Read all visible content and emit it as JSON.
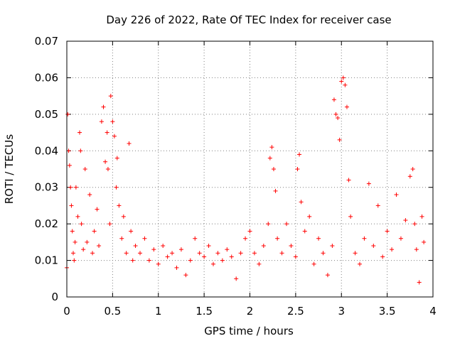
{
  "chart_data": {
    "type": "scatter",
    "title": "Day 226 of 2022, Rate Of TEC Index for receiver case",
    "xlabel": "GPS time / hours",
    "ylabel": "ROTI / TECUs",
    "xlim": [
      0,
      4
    ],
    "ylim": [
      0,
      0.07
    ],
    "x_ticks": [
      0,
      0.5,
      1,
      1.5,
      2,
      2.5,
      3,
      3.5,
      4
    ],
    "x_tick_labels": [
      "0",
      "0.5",
      "1",
      "1.5",
      "2",
      "2.5",
      "3",
      "3.5",
      "4"
    ],
    "y_ticks": [
      0,
      0.01,
      0.02,
      0.03,
      0.04,
      0.05,
      0.06,
      0.07
    ],
    "y_tick_labels": [
      "0",
      "0.01",
      "0.02",
      "0.03",
      "0.04",
      "0.05",
      "0.06",
      "0.07"
    ],
    "grid": true,
    "marker": "+",
    "series": [
      {
        "name": "ROTI",
        "color": "#ff0000",
        "description_points": "approximate digitized samples",
        "x": [
          0.0,
          0.01,
          0.02,
          0.03,
          0.04,
          0.05,
          0.06,
          0.07,
          0.08,
          0.09,
          0.1,
          0.12,
          0.14,
          0.15,
          0.16,
          0.18,
          0.2,
          0.22,
          0.25,
          0.28,
          0.3,
          0.33,
          0.35,
          0.38,
          0.4,
          0.42,
          0.44,
          0.45,
          0.47,
          0.48,
          0.5,
          0.52,
          0.54,
          0.55,
          0.57,
          0.6,
          0.62,
          0.65,
          0.68,
          0.7,
          0.72,
          0.75,
          0.8,
          0.85,
          0.9,
          0.95,
          1.0,
          1.05,
          1.1,
          1.15,
          1.2,
          1.25,
          1.3,
          1.35,
          1.4,
          1.45,
          1.5,
          1.55,
          1.6,
          1.65,
          1.7,
          1.75,
          1.8,
          1.85,
          1.9,
          1.95,
          2.0,
          2.05,
          2.1,
          2.15,
          2.2,
          2.22,
          2.24,
          2.26,
          2.28,
          2.3,
          2.35,
          2.4,
          2.45,
          2.5,
          2.52,
          2.54,
          2.56,
          2.6,
          2.65,
          2.7,
          2.75,
          2.8,
          2.85,
          2.9,
          2.92,
          2.94,
          2.96,
          2.98,
          3.0,
          3.02,
          3.04,
          3.06,
          3.08,
          3.1,
          3.15,
          3.2,
          3.25,
          3.3,
          3.35,
          3.4,
          3.45,
          3.5,
          3.55,
          3.6,
          3.65,
          3.7,
          3.75,
          3.78,
          3.8,
          3.82,
          3.85,
          3.88,
          3.9
        ],
        "y": [
          0.008,
          0.05,
          0.04,
          0.036,
          0.03,
          0.025,
          0.018,
          0.012,
          0.01,
          0.015,
          0.03,
          0.022,
          0.045,
          0.04,
          0.02,
          0.013,
          0.035,
          0.015,
          0.028,
          0.012,
          0.018,
          0.024,
          0.014,
          0.048,
          0.052,
          0.037,
          0.045,
          0.035,
          0.02,
          0.055,
          0.048,
          0.044,
          0.03,
          0.038,
          0.025,
          0.016,
          0.022,
          0.012,
          0.042,
          0.018,
          0.01,
          0.014,
          0.012,
          0.016,
          0.01,
          0.013,
          0.009,
          0.014,
          0.011,
          0.012,
          0.008,
          0.013,
          0.006,
          0.01,
          0.016,
          0.012,
          0.011,
          0.014,
          0.009,
          0.012,
          0.01,
          0.013,
          0.011,
          0.005,
          0.012,
          0.016,
          0.018,
          0.012,
          0.009,
          0.014,
          0.02,
          0.038,
          0.041,
          0.035,
          0.029,
          0.016,
          0.012,
          0.02,
          0.014,
          0.011,
          0.035,
          0.039,
          0.026,
          0.018,
          0.022,
          0.009,
          0.016,
          0.012,
          0.006,
          0.014,
          0.054,
          0.05,
          0.049,
          0.043,
          0.059,
          0.06,
          0.058,
          0.052,
          0.032,
          0.022,
          0.012,
          0.009,
          0.016,
          0.031,
          0.014,
          0.025,
          0.011,
          0.018,
          0.013,
          0.028,
          0.016,
          0.021,
          0.033,
          0.035,
          0.02,
          0.013,
          0.004,
          0.022,
          0.015
        ]
      }
    ]
  }
}
